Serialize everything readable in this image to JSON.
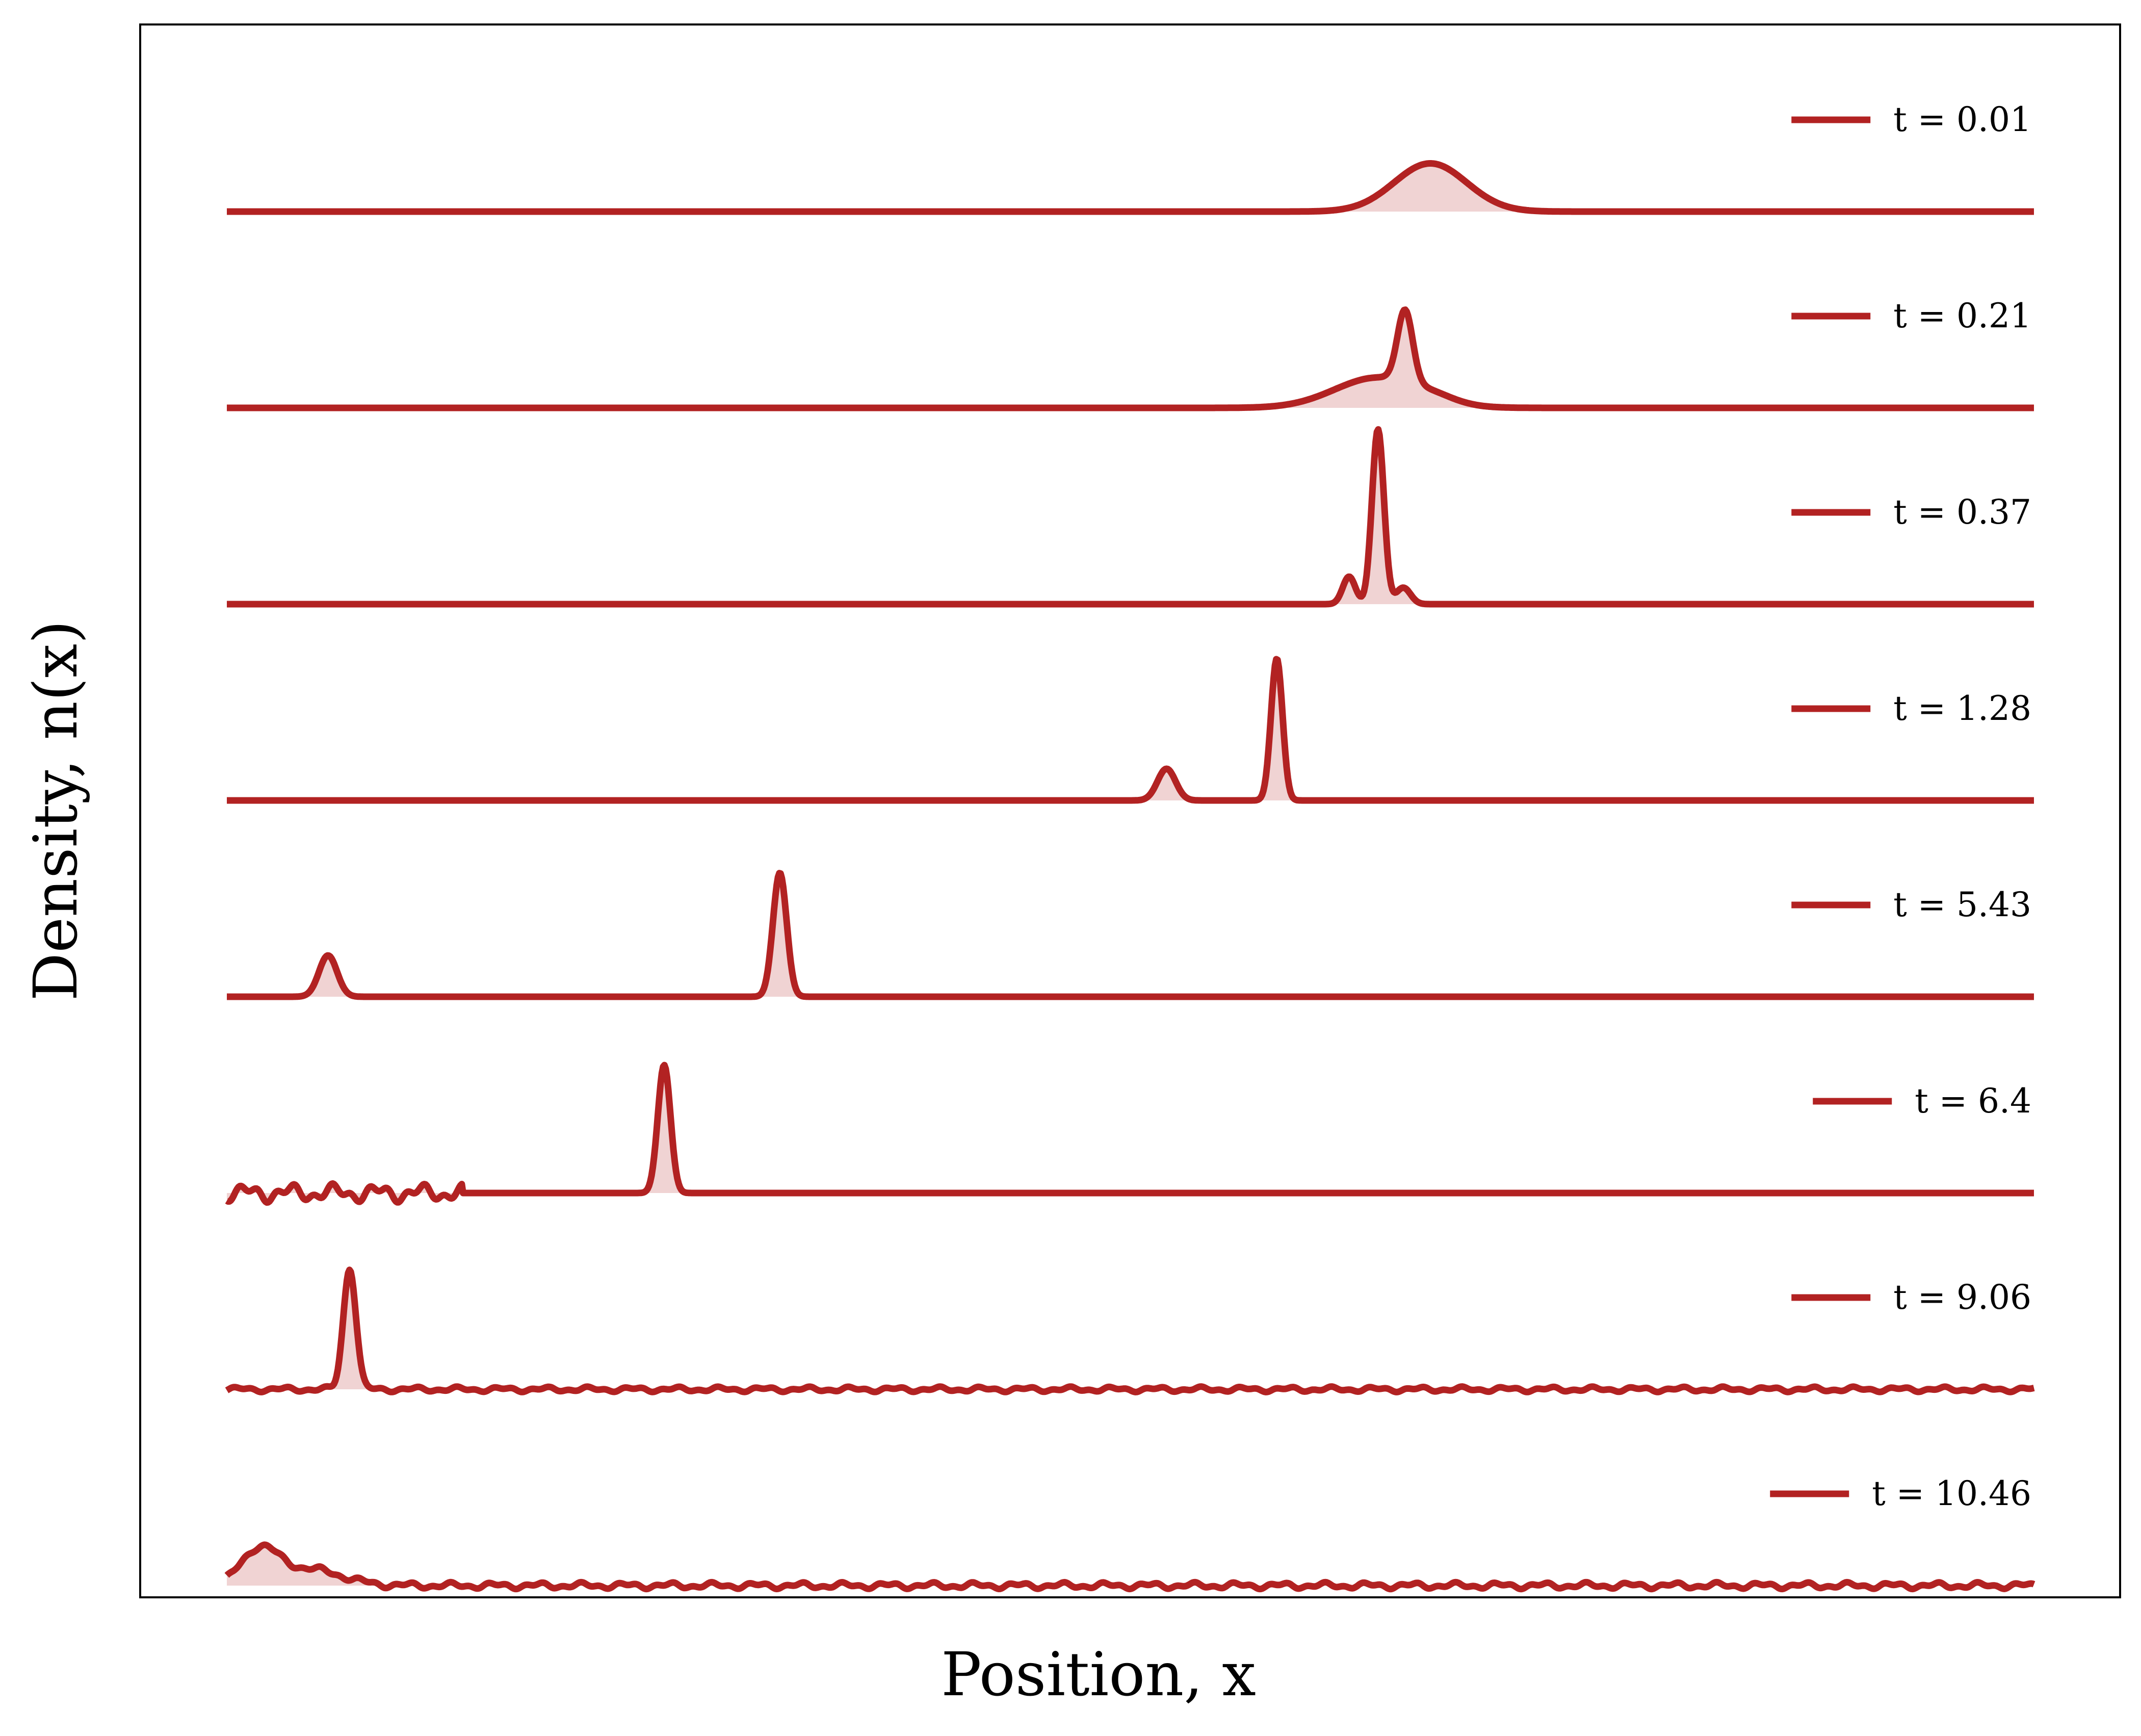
{
  "chart_data": {
    "type": "line",
    "xlabel": "Position, x",
    "ylabel": "Density, n(x)",
    "xlim": [
      0,
      1
    ],
    "ticks_shown": false,
    "grid": false,
    "legend": "right of each trace",
    "color": "#b22222",
    "fill_color": "#b22222",
    "fill_opacity": 0.2,
    "series": [
      {
        "name": "t = 0.01",
        "peaks": [
          {
            "x": 0.666,
            "height": 0.35,
            "width": 0.02
          }
        ]
      },
      {
        "name": "t = 0.21",
        "peaks": [
          {
            "x": 0.637,
            "height": 0.22,
            "width": 0.024
          },
          {
            "x": 0.652,
            "height": 0.52,
            "width": 0.0042
          },
          {
            "x": 0.668,
            "height": 0.03,
            "width": 0.012
          }
        ]
      },
      {
        "name": "t = 0.37",
        "peaks": [
          {
            "x": 0.621,
            "height": 0.2,
            "width": 0.0035
          },
          {
            "x": 0.637,
            "height": 1.27,
            "width": 0.0033
          },
          {
            "x": 0.651,
            "height": 0.12,
            "width": 0.004
          }
        ]
      },
      {
        "name": "t = 1.28",
        "peaks": [
          {
            "x": 0.52,
            "height": 0.23,
            "width": 0.005
          },
          {
            "x": 0.581,
            "height": 1.03,
            "width": 0.0032
          }
        ]
      },
      {
        "name": "t = 5.43",
        "peaks": [
          {
            "x": 0.056,
            "height": 0.3,
            "width": 0.005
          },
          {
            "x": 0.306,
            "height": 0.9,
            "width": 0.0038
          }
        ]
      },
      {
        "name": "t = 6.4",
        "peaks": [
          {
            "x": 0.242,
            "height": 0.93,
            "width": 0.0035
          }
        ],
        "ripple": {
          "from": 0.0,
          "to": 0.13,
          "amplitude": 0.07
        }
      },
      {
        "name": "t = 9.06",
        "peaks": [
          {
            "x": 0.068,
            "height": 0.88,
            "width": 0.0035
          }
        ],
        "ripple": {
          "from": 0.0,
          "to": 1.0,
          "amplitude": 0.02
        }
      },
      {
        "name": "t = 10.46",
        "peaks": [
          {
            "x": 0.018,
            "height": 0.25,
            "width": 0.01
          },
          {
            "x": 0.045,
            "height": 0.12,
            "width": 0.018
          }
        ],
        "ripple": {
          "from": 0.0,
          "to": 1.0,
          "amplitude": 0.025
        }
      }
    ]
  }
}
